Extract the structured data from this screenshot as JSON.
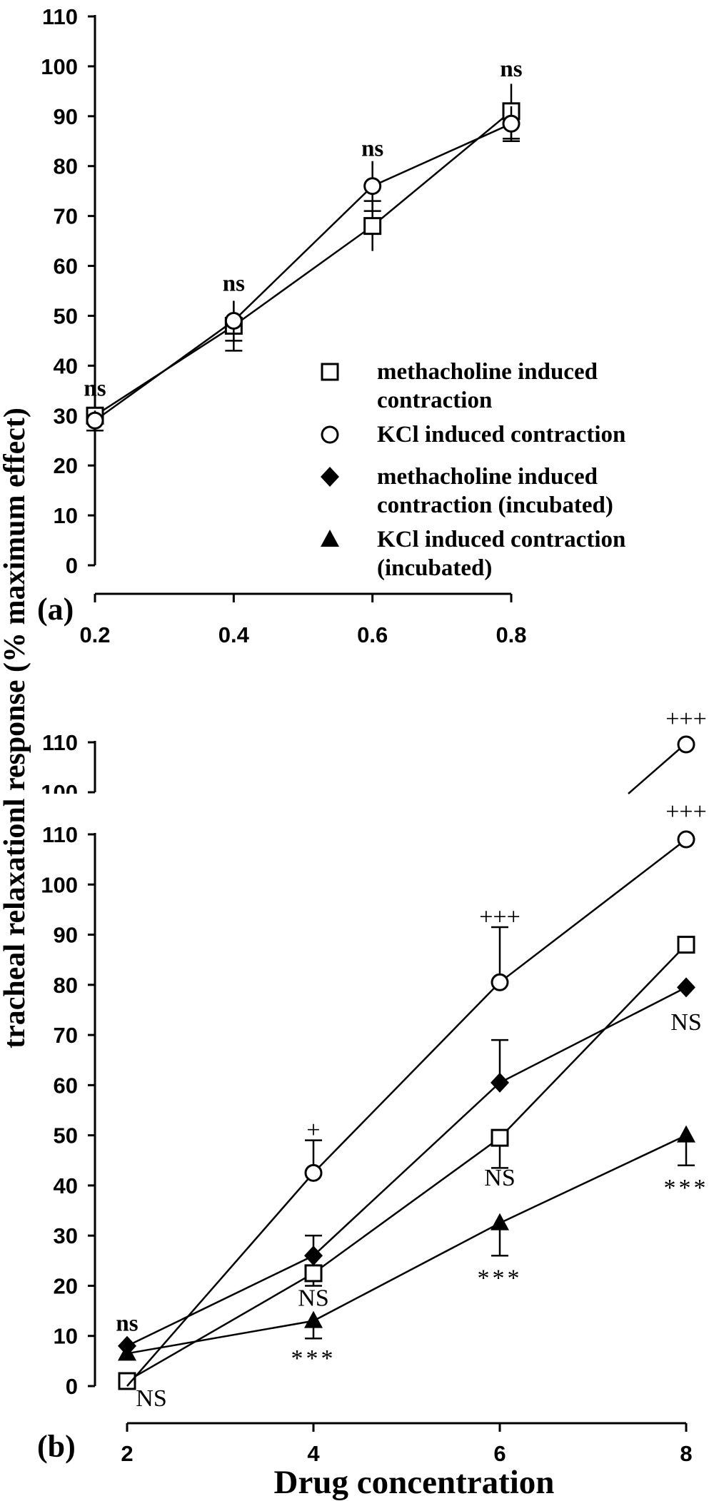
{
  "y_axis_title": "tracheal relaxationl response (% maximum effect)",
  "x_axis_title": "Drug concentration",
  "legend": [
    {
      "key": "meth",
      "lines": [
        "methacholine induced",
        "contraction"
      ]
    },
    {
      "key": "kcl",
      "lines": [
        "KCl induced contraction"
      ]
    },
    {
      "key": "meth_inc",
      "lines": [
        "methacholine induced",
        "contraction (incubated)"
      ]
    },
    {
      "key": "kcl_inc",
      "lines": [
        "KCl induced contraction",
        "(incubated)"
      ]
    }
  ],
  "chart_data": [
    {
      "type": "line",
      "panel_label": "(a)",
      "x_ticks": [
        "0.2",
        "0.4",
        "0.6",
        "0.8"
      ],
      "x": [
        0.2,
        0.4,
        0.6,
        0.8
      ],
      "ylim": [
        0,
        110
      ],
      "y_ticks": [
        "0",
        "10",
        "20",
        "30",
        "40",
        "50",
        "60",
        "70",
        "80",
        "90",
        "100",
        "110"
      ],
      "series": [
        {
          "name": "methacholine induced contraction",
          "marker": "square",
          "values": [
            30,
            48,
            68,
            91
          ],
          "err": [
            0,
            5,
            5,
            5.5
          ]
        },
        {
          "name": "KCl induced contraction",
          "marker": "circle",
          "values": [
            29,
            49,
            76,
            88.5
          ],
          "err": [
            2,
            4,
            5,
            3.5
          ]
        }
      ],
      "annotations": [
        {
          "x": 0.2,
          "y": 34,
          "text": "ns",
          "style": "bold"
        },
        {
          "x": 0.4,
          "y": 55,
          "text": "ns",
          "style": "bold"
        },
        {
          "x": 0.6,
          "y": 82,
          "text": "ns",
          "style": "bold"
        },
        {
          "x": 0.8,
          "y": 98,
          "text": "ns",
          "style": "bold"
        }
      ]
    },
    {
      "type": "line",
      "panel_label": "(b)",
      "x_ticks": [
        "2",
        "4",
        "6",
        "8"
      ],
      "x": [
        2,
        4,
        6,
        8
      ],
      "ylim": [
        0,
        110
      ],
      "y_ticks": [
        "0",
        "10",
        "20",
        "30",
        "40",
        "50",
        "60",
        "70",
        "80",
        "90",
        "100",
        "110"
      ],
      "inset": {
        "y_ticks": [
          "100",
          "110"
        ],
        "point": {
          "x": 8,
          "y": 109
        },
        "label": "+++"
      },
      "series": [
        {
          "name": "methacholine induced contraction",
          "marker": "square",
          "values": [
            1,
            22.5,
            49.5,
            88
          ],
          "err_down": [
            0,
            2.5,
            6,
            0
          ]
        },
        {
          "name": "KCl induced contraction",
          "marker": "circle",
          "values": [
            0,
            42.5,
            80.5,
            109
          ],
          "err_up": [
            0,
            6.5,
            11,
            0
          ]
        },
        {
          "name": "methacholine induced contraction (incubated)",
          "marker": "diamond",
          "values": [
            8,
            26,
            60.5,
            79.5
          ],
          "err_up": [
            0,
            4,
            8.5,
            0
          ]
        },
        {
          "name": "KCl induced contraction (incubated)",
          "marker": "triangle",
          "values": [
            6.5,
            13,
            32.5,
            50
          ],
          "err_down": [
            0,
            3.5,
            6.5,
            6
          ]
        }
      ],
      "annotations": [
        {
          "x": 2,
          "y": 11,
          "text": "ns",
          "style": "bold"
        },
        {
          "x": 2,
          "y": -4,
          "text": "NS",
          "style": "NS",
          "dx": 34
        },
        {
          "x": 4,
          "y": 49.5,
          "text": "+",
          "style": "plain"
        },
        {
          "x": 4,
          "y": 16,
          "text": "NS",
          "style": "NS"
        },
        {
          "x": 4,
          "y": 4,
          "text": "***",
          "style": "star"
        },
        {
          "x": 6,
          "y": 92,
          "text": "+++",
          "style": "plain"
        },
        {
          "x": 6,
          "y": 40,
          "text": "NS",
          "style": "NS"
        },
        {
          "x": 6,
          "y": 20,
          "text": "***",
          "style": "star"
        },
        {
          "x": 8,
          "y": 113,
          "text": "+++",
          "style": "plain"
        },
        {
          "x": 8,
          "y": 71,
          "text": "NS",
          "style": "NS"
        },
        {
          "x": 8,
          "y": 38,
          "text": "***",
          "style": "star"
        }
      ]
    }
  ]
}
